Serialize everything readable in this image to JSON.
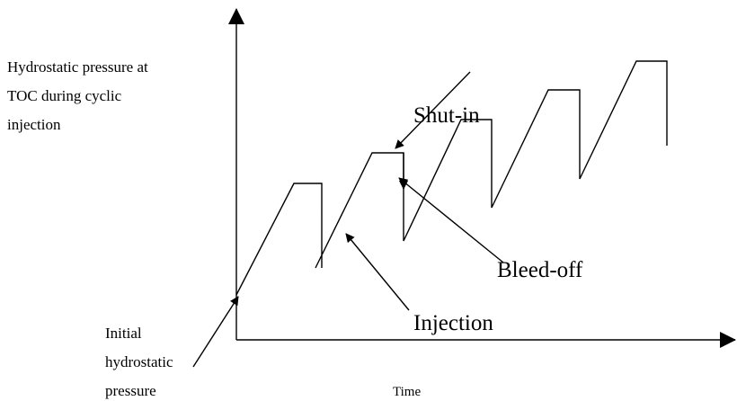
{
  "y_axis_label": [
    "Hydrostatic pressure at",
    "TOC during cyclic",
    "injection"
  ],
  "x_axis_label": "Time",
  "annotations": {
    "shut_in": "Shut-in",
    "bleed_off": "Bleed-off",
    "injection": "Injection",
    "initial": [
      "Initial",
      "hydrostatic",
      "pressure"
    ]
  }
}
